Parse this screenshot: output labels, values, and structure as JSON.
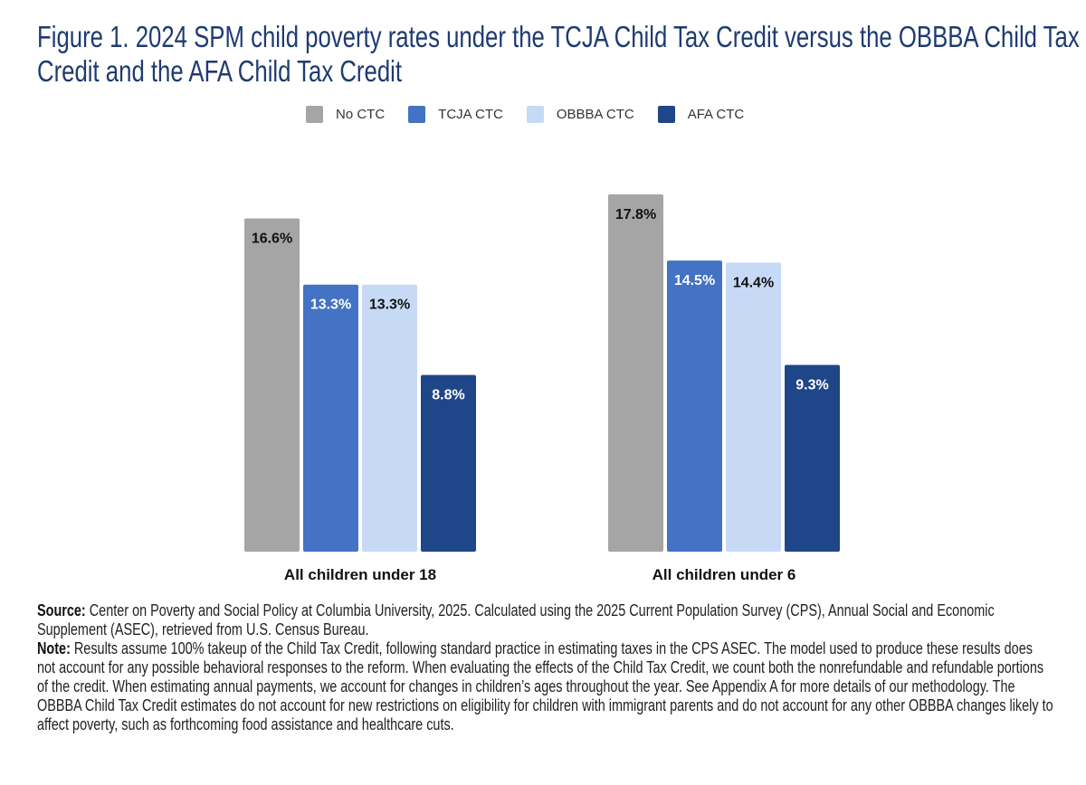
{
  "title": "Figure 1. 2024 SPM child poverty rates under the TCJA Child Tax Credit versus the OBBBA Child Tax Credit and the AFA Child Tax Credit",
  "chart_data": {
    "type": "bar",
    "title": "Figure 1. 2024 SPM child poverty rates under the TCJA Child Tax Credit versus the OBBBA Child Tax Credit and the AFA Child Tax Credit",
    "categories": [
      "All children under 18",
      "All children under 6"
    ],
    "series": [
      {
        "name": "No CTC",
        "color": "#a5a5a5",
        "label_color": "#111111",
        "values": [
          16.6,
          17.8
        ],
        "labels": [
          "16.6%",
          "17.8%"
        ]
      },
      {
        "name": "TCJA CTC",
        "color": "#4472c4",
        "label_color": "#ffffff",
        "values": [
          13.3,
          14.5
        ],
        "labels": [
          "13.3%",
          "14.5%"
        ]
      },
      {
        "name": "OBBBA CTC",
        "color": "#c6daf5",
        "label_color": "#111111",
        "values": [
          13.3,
          14.4
        ],
        "labels": [
          "13.3%",
          "14.4%"
        ]
      },
      {
        "name": "AFA CTC",
        "color": "#1f4688",
        "label_color": "#ffffff",
        "values": [
          8.8,
          9.3
        ],
        "labels": [
          "8.8%",
          "9.3%"
        ]
      }
    ],
    "xlabel": "",
    "ylabel": "",
    "ylim": [
      0,
      20
    ],
    "grid": false,
    "legend_position": "top-center"
  },
  "notes": {
    "source_label": "Source:",
    "source_text": "Center on Poverty and Social Policy at Columbia University, 2025. Calculated using the 2025 Current Population Survey (CPS), Annual Social and Economic Supplement (ASEC), retrieved from U.S. Census Bureau.",
    "note_label": "Note:",
    "note_text": "Results assume 100% takeup of the Child Tax Credit, following standard practice in estimating taxes in the CPS ASEC. The model used to produce these results does not account for any possible behavioral responses to the reform. When evaluating the effects of the Child Tax Credit, we count both the nonrefundable and refundable portions of the credit. When estimating annual payments, we account for changes in children’s ages throughout the year. See Appendix A for more details of our methodology. The OBBBA Child Tax Credit estimates do not account for new restrictions on eligibility for children with immigrant parents and do not account for any other OBBBA changes likely to affect poverty, such as forthcoming food assistance and healthcare cuts."
  }
}
